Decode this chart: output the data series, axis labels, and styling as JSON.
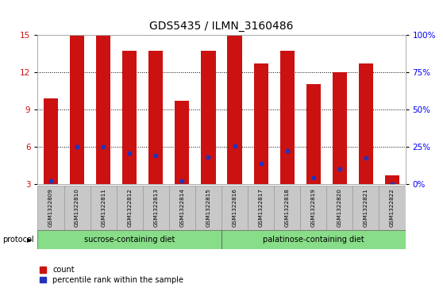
{
  "title": "GDS5435 / ILMN_3160486",
  "samples": [
    "GSM1322809",
    "GSM1322810",
    "GSM1322811",
    "GSM1322812",
    "GSM1322813",
    "GSM1322814",
    "GSM1322815",
    "GSM1322816",
    "GSM1322817",
    "GSM1322818",
    "GSM1322819",
    "GSM1322820",
    "GSM1322821",
    "GSM1322822"
  ],
  "red_bar_heights": [
    9.9,
    15.0,
    15.0,
    13.7,
    13.7,
    9.7,
    13.7,
    15.0,
    12.7,
    13.7,
    11.0,
    12.0,
    12.7,
    3.7
  ],
  "blue_marker_values": [
    3.3,
    6.0,
    6.0,
    5.5,
    5.3,
    3.3,
    5.2,
    6.1,
    4.7,
    5.7,
    3.5,
    4.2,
    5.1,
    3.0
  ],
  "ylim_left": [
    3,
    15
  ],
  "ylim_right": [
    0,
    100
  ],
  "yticks_left": [
    3,
    6,
    9,
    12,
    15
  ],
  "yticks_right": [
    0,
    25,
    50,
    75,
    100
  ],
  "ytick_labels_right": [
    "0%",
    "25%",
    "50%",
    "75%",
    "100%"
  ],
  "bar_color": "#cc1111",
  "blue_color": "#2233bb",
  "background_color": "#ffffff",
  "label_area_color": "#c8c8c8",
  "green_color": "#88dd88",
  "sucrose_label": "sucrose-containing diet",
  "palatinose_label": "palatinose-containing diet",
  "sucrose_count": 7,
  "palatinose_count": 7,
  "protocol_label": "protocol",
  "legend_count_label": "count",
  "legend_percentile_label": "percentile rank within the sample",
  "bar_width": 0.55,
  "title_fontsize": 10,
  "tick_fontsize": 7.5,
  "bar_base": 3.0
}
